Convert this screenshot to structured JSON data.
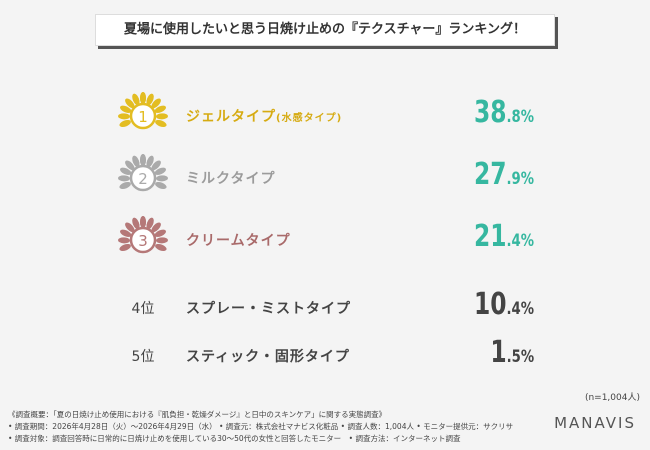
{
  "header": {
    "title": "夏場に使用したいと思う日焼け止めの『テクスチャー』ランキング！"
  },
  "ranking": [
    {
      "rank": "1",
      "label": "ジェルタイプ",
      "sublabel": "(水感タイプ)",
      "value_major": "38",
      "value_minor": ".8%"
    },
    {
      "rank": "2",
      "label": "ミルクタイプ",
      "value_major": "27",
      "value_minor": ".9%"
    },
    {
      "rank": "3",
      "label": "クリームタイプ",
      "value_major": "21",
      "value_minor": ".4%"
    },
    {
      "rank": "4位",
      "label": "スプレー・ミストタイプ",
      "value_major": "10",
      "value_minor": ".4%"
    },
    {
      "rank": "5位",
      "label": "スティック・固形タイプ",
      "value_major": "1",
      "value_minor": ".5%"
    }
  ],
  "sample_size": "(n=1,004人)",
  "footer": {
    "notes": [
      "《調査概要：「夏の日焼け止め使用における『肌負担・乾燥ダメージ』と日中のスキンケア」に関する実態調査》",
      "• 調査期間：2026年4月28日（火）～2026年4月29日（水） • 調査元：株式会社マナビス化粧品 • 調査人数：1,004人 • モニター提供元：サクリサ",
      "• 調査対象：調査回答時に日常的に日焼け止めを使用している30～50代の女性と回答したモニター　• 調査方法：インターネット調査"
    ],
    "logo": "MANAVIS"
  }
}
